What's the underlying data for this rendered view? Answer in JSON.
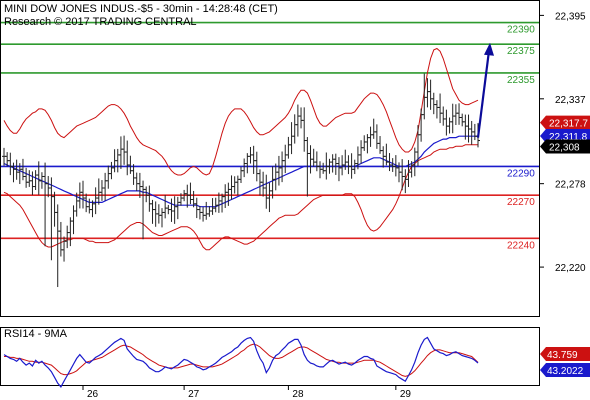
{
  "header": {
    "title": "MINI DOW JONES INDUS.-$5 - 30min - 14:28:48 (CET)",
    "copyright": "Research © 2017 TRADING CENTRAL"
  },
  "colors": {
    "resistance": "#2e9a2e",
    "pivot": "#1a1acc",
    "support": "#dd2222",
    "bollinger": "#cc1111",
    "moving_average": "#1a1acc",
    "price_bars": "#222222",
    "forecast_arrow": "#0b0b99",
    "current_price_label_bg": "#000000",
    "ma_label_bg": "#1a1acc",
    "bb_label_bg": "#cc1111",
    "rsi_line": "#1a1acc",
    "rsi_ma": "#cc1111"
  },
  "chart_data": [
    {
      "type": "ohlc",
      "title": "MINI DOW JONES INDUS.-$5 - 30min - 14:28:48 (CET)",
      "x_tick_labels": [
        "26",
        "27",
        "28",
        "29"
      ],
      "y_ticks": [
        22220,
        22278,
        22337,
        22395
      ],
      "ylim": [
        22186,
        22405
      ],
      "levels": [
        {
          "value": 22390,
          "label": "22390",
          "kind": "resistance"
        },
        {
          "value": 22375,
          "label": "22375",
          "kind": "resistance"
        },
        {
          "value": 22355,
          "label": "22355",
          "kind": "resistance"
        },
        {
          "value": 22290,
          "label": "22290",
          "kind": "pivot"
        },
        {
          "value": 22270,
          "label": "22270",
          "kind": "support"
        },
        {
          "value": 22240,
          "label": "22240",
          "kind": "support"
        }
      ],
      "price_tags": [
        {
          "value": 22317.7,
          "label": "22,317.7",
          "kind": "bollinger"
        },
        {
          "value": 22311.8,
          "label": "22,311.8",
          "kind": "moving_average"
        },
        {
          "value": 22308,
          "label": "22,308",
          "kind": "last_price"
        }
      ],
      "forecast_arrow": {
        "from": 22310,
        "to": 22376
      },
      "close_path": [
        22297,
        22294,
        22290,
        22288,
        22286,
        22288,
        22283,
        22279,
        22280,
        22276,
        22284,
        22280,
        22283,
        22278,
        22275,
        22269,
        22258,
        22245,
        22232,
        22238,
        22244,
        22252,
        22259,
        22266,
        22272,
        22268,
        22262,
        22260,
        22264,
        22268,
        22272,
        22275,
        22280,
        22285,
        22289,
        22294,
        22298,
        22302,
        22300,
        22291,
        22287,
        22282,
        22278,
        22276,
        22274,
        22270,
        22264,
        22260,
        22257,
        22256,
        22258,
        22261,
        22260,
        22259,
        22262,
        22265,
        22268,
        22271,
        22270,
        22267,
        22264,
        22260,
        22258,
        22256,
        22257,
        22259,
        22261,
        22263,
        22266,
        22269,
        22272,
        22274,
        22276,
        22279,
        22281,
        22287,
        22292,
        22297,
        22298,
        22294,
        22285,
        22279,
        22275,
        22268,
        22273,
        22281,
        22286,
        22289,
        22294,
        22298,
        22305,
        22311,
        22319,
        22325,
        22322,
        22308,
        22299,
        22295,
        22293,
        22290,
        22288,
        22287,
        22290,
        22293,
        22295,
        22292,
        22289,
        22291,
        22293,
        22290,
        22288,
        22292,
        22298,
        22303,
        22307,
        22310,
        22312,
        22314,
        22306,
        22301,
        22297,
        22293,
        22291,
        22290,
        22289,
        22286,
        22283,
        22281,
        22286,
        22291,
        22300,
        22312,
        22326,
        22338,
        22342,
        22337,
        22333,
        22331,
        22327,
        22323,
        22318,
        22321,
        22325,
        22327,
        22324,
        22321,
        22318,
        22316,
        22314,
        22311,
        22308
      ],
      "bb_upper": [
        22322,
        22318,
        22315,
        22313,
        22313,
        22316,
        22320,
        22323,
        22325,
        22327,
        22328,
        22330,
        22330,
        22329,
        22326,
        22322,
        22317,
        22313,
        22311,
        22310,
        22312,
        22314,
        22316,
        22318,
        22319,
        22320,
        22321,
        22322,
        22323,
        22324,
        22326,
        22328,
        22330,
        22332,
        22333,
        22333,
        22332,
        22330,
        22327,
        22323,
        22318,
        22314,
        22310,
        22307,
        22305,
        22304,
        22303,
        22302,
        22301,
        22299,
        22297,
        22294,
        22290,
        22287,
        22285,
        22284,
        22284,
        22285,
        22287,
        22289,
        22290,
        22289,
        22287,
        22285,
        22284,
        22285,
        22290,
        22297,
        22305,
        22313,
        22320,
        22325,
        22328,
        22330,
        22330,
        22330,
        22328,
        22325,
        22321,
        22317,
        22314,
        22312,
        22312,
        22313,
        22314,
        22316,
        22318,
        22320,
        22322,
        22324,
        22327,
        22331,
        22336,
        22340,
        22343,
        22343,
        22341,
        22336,
        22330,
        22324,
        22320,
        22318,
        22318,
        22320,
        22322,
        22324,
        22325,
        22326,
        22327,
        22327,
        22327,
        22328,
        22331,
        22334,
        22337,
        22339,
        22341,
        22341,
        22340,
        22337,
        22333,
        22328,
        22322,
        22316,
        22310,
        22305,
        22302,
        22300,
        22300,
        22302,
        22307,
        22315,
        22328,
        22342,
        22355,
        22365,
        22371,
        22372,
        22370,
        22365,
        22358,
        22351,
        22344,
        22340,
        22336,
        22334,
        22333,
        22333,
        22334,
        22335,
        22336
      ],
      "bb_lower": [
        22272,
        22271,
        22269,
        22267,
        22265,
        22263,
        22260,
        22256,
        22252,
        22248,
        22244,
        22240,
        22237,
        22235,
        22234,
        22234,
        22235,
        22236,
        22237,
        22238,
        22239,
        22239,
        22240,
        22240,
        22240,
        22240,
        22239,
        22238,
        22238,
        22237,
        22237,
        22237,
        22237,
        22237,
        22238,
        22239,
        22241,
        22243,
        22245,
        22247,
        22249,
        22250,
        22251,
        22251,
        22250,
        22248,
        22246,
        22244,
        22243,
        22242,
        22242,
        22243,
        22244,
        22245,
        22246,
        22247,
        22248,
        22248,
        22248,
        22247,
        22245,
        22242,
        22238,
        22234,
        22232,
        22232,
        22234,
        22236,
        22238,
        22240,
        22241,
        22241,
        22240,
        22239,
        22238,
        22237,
        22236,
        22236,
        22237,
        22238,
        22240,
        22242,
        22244,
        22246,
        22248,
        22250,
        22252,
        22254,
        22255,
        22256,
        22256,
        22256,
        22256,
        22257,
        22259,
        22261,
        22263,
        22265,
        22267,
        22268,
        22269,
        22270,
        22270,
        22270,
        22270,
        22270,
        22270,
        22270,
        22271,
        22271,
        22271,
        22269,
        22265,
        22260,
        22254,
        22249,
        22246,
        22245,
        22246,
        22248,
        22251,
        22254,
        22257,
        22260,
        22264,
        22269,
        22275,
        22281,
        22286,
        22290,
        22292,
        22294,
        22295,
        22296,
        22297,
        22298,
        22300,
        22301,
        22302,
        22302,
        22302,
        22303,
        22303,
        22304,
        22304,
        22304,
        22305,
        22305,
        22305,
        22305,
        22305
      ],
      "ma": [
        22292,
        22291,
        22290,
        22289,
        22288,
        22287,
        22286,
        22285,
        22284,
        22283,
        22282,
        22281,
        22280,
        22279,
        22278,
        22277,
        22276,
        22275,
        22274,
        22273,
        22272,
        22271,
        22270,
        22269,
        22268,
        22267,
        22266,
        22265,
        22265,
        22265,
        22265,
        22265,
        22266,
        22267,
        22268,
        22269,
        22270,
        22271,
        22272,
        22273,
        22273,
        22273,
        22273,
        22273,
        22272,
        22272,
        22271,
        22270,
        22269,
        22268,
        22267,
        22266,
        22265,
        22264,
        22263,
        22263,
        22263,
        22263,
        22263,
        22263,
        22263,
        22263,
        22262,
        22262,
        22262,
        22262,
        22262,
        22262,
        22263,
        22264,
        22265,
        22266,
        22267,
        22268,
        22269,
        22270,
        22271,
        22272,
        22273,
        22274,
        22275,
        22276,
        22277,
        22278,
        22279,
        22280,
        22281,
        22282,
        22283,
        22284,
        22285,
        22286,
        22287,
        22288,
        22289,
        22290,
        22290,
        22290,
        22290,
        22290,
        22290,
        22290,
        22290,
        22290,
        22290,
        22290,
        22290,
        22290,
        22290,
        22290,
        22290,
        22290,
        22291,
        22292,
        22293,
        22294,
        22295,
        22296,
        22296,
        22296,
        22295,
        22294,
        22293,
        22292,
        22291,
        22290,
        22290,
        22290,
        22291,
        22292,
        22293,
        22295,
        22297,
        22300,
        22302,
        22304,
        22306,
        22307,
        22308,
        22309,
        22309,
        22310,
        22310,
        22310,
        22311,
        22311,
        22311,
        22311,
        22311,
        22311,
        22311
      ]
    },
    {
      "type": "line",
      "title": "RSI14 - 9MA",
      "series_names": [
        "RSI14",
        "9MA"
      ],
      "ylim": [
        20,
        80
      ],
      "price_tags": [
        {
          "value": 43.759,
          "label": "43.759",
          "kind": "rsi_ma"
        },
        {
          "value": 43.2022,
          "label": "43.2022",
          "kind": "rsi"
        }
      ],
      "rsi": [
        52,
        50,
        48,
        47,
        45,
        48,
        44,
        41,
        43,
        40,
        46,
        43,
        45,
        41,
        38,
        34,
        28,
        22,
        18,
        24,
        30,
        36,
        42,
        48,
        52,
        48,
        44,
        43,
        46,
        49,
        51,
        53,
        56,
        59,
        62,
        65,
        67,
        69,
        67,
        58,
        54,
        50,
        47,
        46,
        45,
        42,
        38,
        36,
        34,
        34,
        36,
        39,
        38,
        37,
        39,
        41,
        44,
        47,
        46,
        44,
        42,
        39,
        38,
        36,
        37,
        39,
        41,
        43,
        46,
        49,
        51,
        53,
        55,
        58,
        60,
        64,
        67,
        69,
        70,
        66,
        56,
        48,
        43,
        33,
        38,
        46,
        51,
        53,
        57,
        60,
        64,
        66,
        68,
        68,
        62,
        52,
        46,
        43,
        42,
        40,
        39,
        39,
        42,
        45,
        46,
        44,
        42,
        43,
        44,
        42,
        41,
        43,
        46,
        48,
        50,
        50,
        48,
        47,
        40,
        38,
        36,
        34,
        33,
        32,
        31,
        28,
        26,
        24,
        30,
        36,
        44,
        54,
        62,
        68,
        70,
        64,
        58,
        56,
        54,
        53,
        51,
        52,
        54,
        55,
        53,
        51,
        50,
        49,
        48,
        46,
        43.2
      ],
      "rsi_ma": [
        50,
        50,
        49,
        49,
        48,
        48,
        47,
        46,
        45,
        45,
        44,
        44,
        44,
        43,
        42,
        41,
        38,
        35,
        32,
        31,
        31,
        32,
        33,
        35,
        38,
        41,
        44,
        45,
        46,
        47,
        48,
        49,
        51,
        53,
        55,
        57,
        59,
        61,
        62,
        61,
        60,
        58,
        56,
        54,
        52,
        49,
        47,
        45,
        43,
        41,
        40,
        39,
        38,
        38,
        38,
        38,
        39,
        40,
        41,
        42,
        42,
        41,
        40,
        39,
        39,
        39,
        39,
        40,
        41,
        42,
        44,
        46,
        48,
        50,
        52,
        55,
        57,
        60,
        62,
        63,
        62,
        60,
        57,
        54,
        51,
        49,
        48,
        48,
        49,
        51,
        53,
        55,
        57,
        59,
        60,
        60,
        59,
        57,
        55,
        53,
        51,
        49,
        47,
        46,
        45,
        44,
        44,
        43,
        43,
        43,
        43,
        43,
        44,
        45,
        46,
        46,
        46,
        46,
        45,
        44,
        42,
        40,
        38,
        36,
        34,
        32,
        30,
        29,
        30,
        32,
        35,
        39,
        43,
        47,
        51,
        54,
        56,
        57,
        57,
        56,
        55,
        54,
        54,
        54,
        54,
        53,
        52,
        51,
        50,
        47,
        43.8
      ]
    }
  ]
}
